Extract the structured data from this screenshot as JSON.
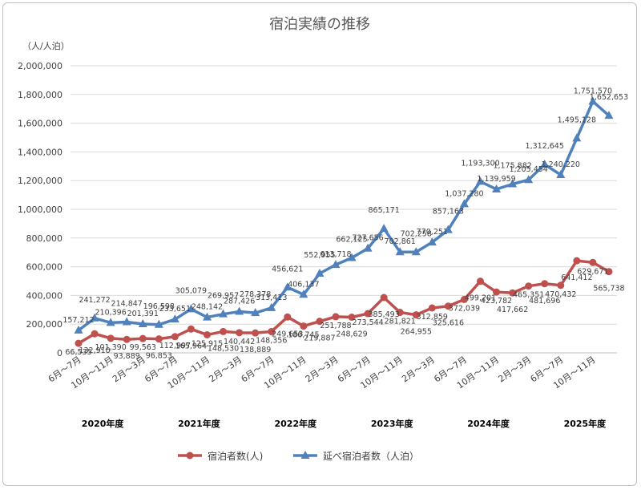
{
  "chart_data": {
    "type": "line",
    "title": "宿泊実績の推移",
    "ylabel": "（人/人泊）",
    "ylim": [
      0,
      2000000
    ],
    "yticks": [
      "0",
      "200,000",
      "400,000",
      "600,000",
      "800,000",
      "1,000,000",
      "1,200,000",
      "1,400,000",
      "1,600,000",
      "1,800,000",
      "2,000,000"
    ],
    "ytick_values": [
      0,
      200000,
      400000,
      600000,
      800000,
      1000000,
      1200000,
      1400000,
      1600000,
      1800000,
      2000000
    ],
    "grid": true,
    "legend_position": "bottom",
    "x_tick_labels": [
      "6月～7月",
      "10月～11月",
      "2月～3月",
      "6月～7月",
      "10月～11月",
      "2月～3月",
      "6月～7月",
      "10月～11月",
      "2月～3月",
      "6月～7月",
      "10月～11月",
      "2月～3月",
      "6月～7月",
      "10月～11月",
      "2月～3月",
      "6月～7月",
      "10月～11月"
    ],
    "x_tick_indices": [
      0,
      2,
      4,
      6,
      8,
      10,
      12,
      14,
      16,
      18,
      20,
      22,
      24,
      26,
      28,
      30,
      32
    ],
    "fiscal_years": [
      "2020年度",
      "2021年度",
      "2022年度",
      "2023年度",
      "2024年度",
      "2025年度"
    ],
    "fiscal_year_centers": [
      1.5,
      7.5,
      13.5,
      19.5,
      25.5,
      31.5
    ],
    "series": [
      {
        "name": "宿泊者数(人)",
        "color": "#c0504d",
        "marker": "circle",
        "values": [
          66535,
          132910,
          101390,
          93889,
          99563,
          96853,
          112997,
          165964,
          125915,
          148530,
          140442,
          138889,
          148356,
          249653,
          186745,
          219887,
          251788,
          248629,
          273544,
          385493,
          281821,
          264955,
          312859,
          325616,
          372039,
          499201,
          423782,
          417662,
          465351,
          481696,
          470432,
          641412,
          629671,
          565738
        ],
        "labels": [
          "66,535",
          "132,910",
          "101,390",
          "93,889",
          "99,563",
          "96,853",
          "112,997",
          "165,964",
          "125,915",
          "148,530",
          "140,442",
          "138,889",
          "148,356",
          "249,653",
          "186,745",
          "219,887",
          "251,788",
          "248,629",
          "273,544",
          "385,493",
          "281,821",
          "264,955",
          "312,859",
          "325,616",
          "372,039",
          "499,201",
          "423,782",
          "417,662",
          "465,351",
          "481,696",
          "470,432",
          "641,412",
          "629,671",
          "565,738"
        ]
      },
      {
        "name": "延べ宿泊者数（人泊）",
        "color": "#4f81bd",
        "marker": "triangle",
        "values": [
          157212,
          241272,
          210396,
          214847,
          201391,
          196598,
          233651,
          305079,
          248142,
          269957,
          287426,
          278378,
          313413,
          456621,
          406137,
          552955,
          613718,
          662125,
          727656,
          865171,
          702861,
          702258,
          770251,
          857163,
          1037280,
          1193300,
          1139959,
          1175882,
          1205454,
          1312645,
          1240220,
          1495128,
          1751570,
          1652653
        ],
        "labels": [
          "157,212",
          "241,272",
          "210,396",
          "214,847",
          "201,391",
          "196,598",
          "233,651",
          "305,079",
          "248,142",
          "269,957",
          "287,426",
          "278,378",
          "313,413",
          "456,621",
          "406,137",
          "552,955",
          "613,718",
          "662,125",
          "727,656",
          "865,171",
          "702,861",
          "702,258",
          "770,251",
          "857,163",
          "1,037,280",
          "1,193,300",
          "1,139,959",
          "1,175,882",
          "1,205,454",
          "1,312,645",
          "1,240,220",
          "1,495,128",
          "1,751,570",
          "1,652,653"
        ]
      }
    ]
  }
}
